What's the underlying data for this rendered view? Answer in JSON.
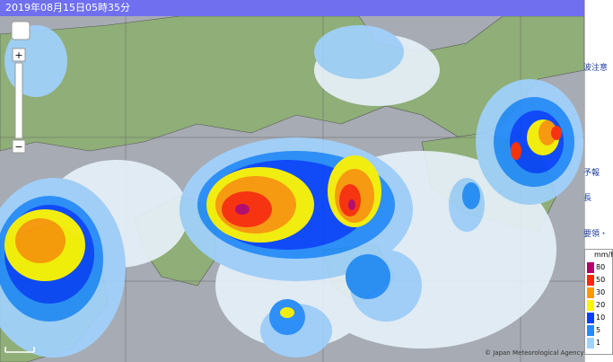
{
  "header": {
    "title": "2019年08月15日05時35分"
  },
  "map": {
    "zoom_in": "+",
    "zoom_out": "−",
    "copyright": "© Japan Meteorological Agency"
  },
  "legend": {
    "unit": "mm/h",
    "items": [
      {
        "label": 80,
        "color": "#b40068"
      },
      {
        "label": 50,
        "color": "#ff2800"
      },
      {
        "label": 30,
        "color": "#ff9900"
      },
      {
        "label": 20,
        "color": "#faf500"
      },
      {
        "label": 10,
        "color": "#0041ff"
      },
      {
        "label": 5,
        "color": "#218cff"
      },
      {
        "label": 1,
        "color": "#a0d2ff"
      }
    ]
  },
  "sidebar": {
    "links": [
      "波注意",
      "予報",
      "長",
      "要領・"
    ]
  }
}
